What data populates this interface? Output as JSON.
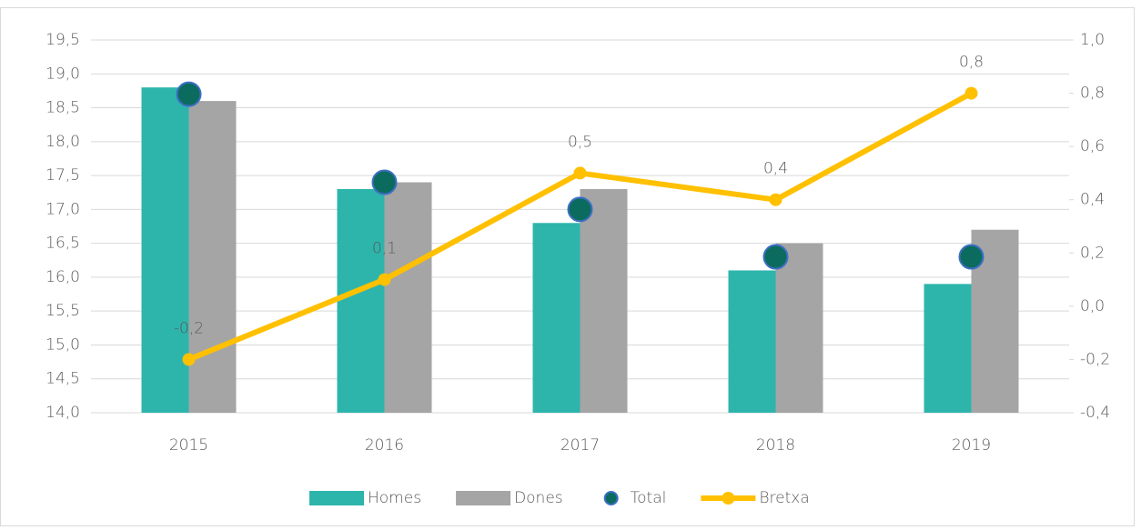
{
  "chart_data": {
    "type": "combo",
    "categories": [
      "2015",
      "2016",
      "2017",
      "2018",
      "2019"
    ],
    "series": [
      {
        "name": "Homes",
        "type": "bar",
        "color": "#2db5ac",
        "values": [
          18.8,
          17.3,
          16.8,
          16.1,
          15.9
        ]
      },
      {
        "name": "Dones",
        "type": "bar",
        "color": "#a5a5a5",
        "values": [
          18.6,
          17.4,
          17.3,
          16.5,
          16.7
        ]
      },
      {
        "name": "Total",
        "type": "scatter",
        "color": "#0b6b5e",
        "values": [
          18.7,
          17.4,
          17.0,
          16.3,
          16.3
        ]
      },
      {
        "name": "Bretxa",
        "type": "line",
        "axis": "y2",
        "color": "#ffc000",
        "values": [
          -0.2,
          0.1,
          0.5,
          0.4,
          0.8
        ],
        "value_labels": [
          "-0,2",
          "0,1",
          "0,5",
          "0,4",
          "0,8"
        ]
      }
    ],
    "ylim": [
      14.0,
      19.5
    ],
    "yticks": [
      {
        "value": 14.0,
        "label": "14,0"
      },
      {
        "value": 14.5,
        "label": "14,5"
      },
      {
        "value": 15.0,
        "label": "15,0"
      },
      {
        "value": 15.5,
        "label": "15,5"
      },
      {
        "value": 16.0,
        "label": "16,0"
      },
      {
        "value": 16.5,
        "label": "16,5"
      },
      {
        "value": 17.0,
        "label": "17,0"
      },
      {
        "value": 17.5,
        "label": "17,5"
      },
      {
        "value": 18.0,
        "label": "18,0"
      },
      {
        "value": 18.5,
        "label": "18,5"
      },
      {
        "value": 19.0,
        "label": "19,0"
      },
      {
        "value": 19.5,
        "label": "19,5"
      }
    ],
    "y2lim": [
      -0.4,
      1.0
    ],
    "y2ticks": [
      {
        "value": -0.4,
        "label": "-0,4"
      },
      {
        "value": -0.2,
        "label": "-0,2"
      },
      {
        "value": 0.0,
        "label": "0,0"
      },
      {
        "value": 0.2,
        "label": "0,2"
      },
      {
        "value": 0.4,
        "label": "0,4"
      },
      {
        "value": 0.6,
        "label": "0,6"
      },
      {
        "value": 0.8,
        "label": "0,8"
      },
      {
        "value": 1.0,
        "label": "1,0"
      }
    ],
    "grid": true,
    "legend": "bottom"
  }
}
